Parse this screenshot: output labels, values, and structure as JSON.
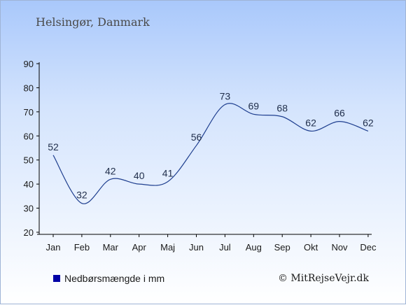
{
  "header": {
    "title": "Helsingør, Danmark"
  },
  "legend": {
    "label": "Nedbørsmængde i mm"
  },
  "footer": {
    "credit": "© MitRejseVejr.dk"
  },
  "colors": {
    "line": "#1f3f8f",
    "legend": "#0000a6"
  },
  "chart_data": {
    "type": "line",
    "categories": [
      "Jan",
      "Feb",
      "Mar",
      "Apr",
      "Maj",
      "Jun",
      "Jul",
      "Aug",
      "Sep",
      "Okt",
      "Nov",
      "Dec"
    ],
    "series": [
      {
        "values": [
          52,
          32,
          42,
          40,
          41,
          56,
          73,
          69,
          68,
          62,
          66,
          62
        ]
      }
    ],
    "ylim": [
      20,
      90
    ],
    "yticks": [
      20,
      30,
      40,
      50,
      60,
      70,
      80,
      90
    ],
    "grid": false,
    "legend_position": "bottom-left"
  }
}
